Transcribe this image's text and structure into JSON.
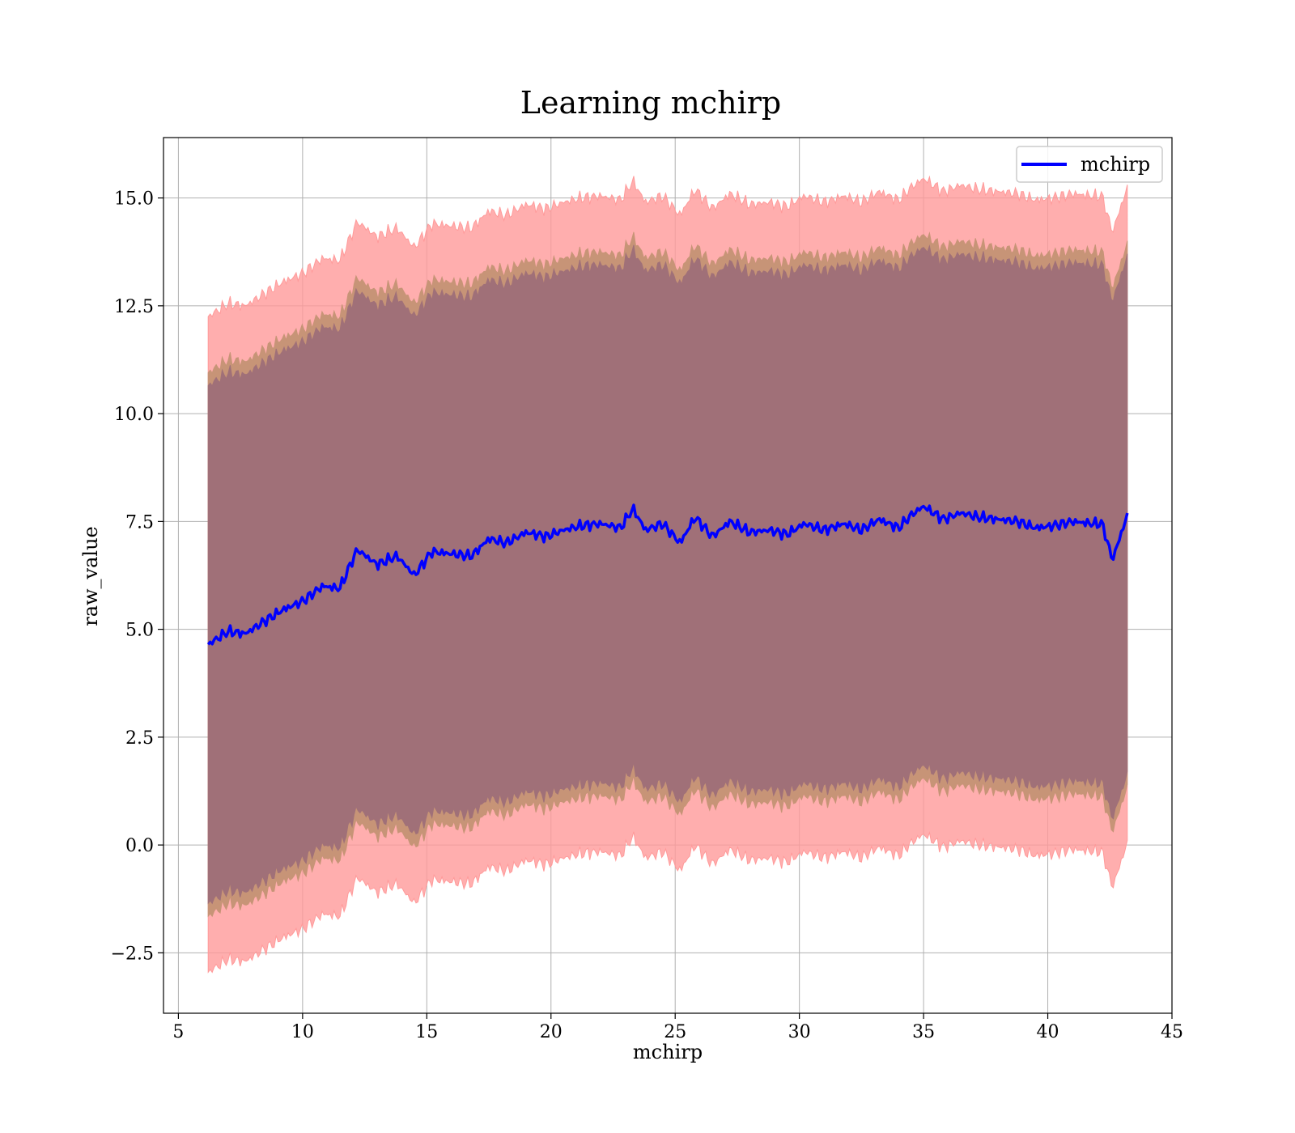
{
  "chart_data": {
    "type": "line",
    "title": "Learning mchirp",
    "xlabel": "mchirp",
    "ylabel": "raw_value",
    "xlim": [
      4.4,
      45
    ],
    "ylim": [
      -3.9,
      16.4
    ],
    "xticks": [
      5,
      10,
      15,
      20,
      25,
      30,
      35,
      40,
      45
    ],
    "xtick_labels": [
      "5",
      "10",
      "15",
      "20",
      "25",
      "30",
      "35",
      "40",
      "45"
    ],
    "yticks": [
      -2.5,
      0.0,
      2.5,
      5.0,
      7.5,
      10.0,
      12.5,
      15.0
    ],
    "ytick_labels": [
      "−2.5",
      "0.0",
      "2.5",
      "5.0",
      "7.5",
      "10.0",
      "12.5",
      "15.0"
    ],
    "grid": true,
    "legend_position": "top-right",
    "colors": {
      "line": "#0000ff",
      "band_outer": "#ff9a9a",
      "band_middle": "#c79477",
      "band_inner": "#a07078"
    },
    "series": [
      {
        "name": "mchirp",
        "x": [
          6.2,
          7.0,
          7.7,
          8.5,
          9.2,
          10.0,
          10.8,
          11.5,
          12.2,
          13.0,
          13.8,
          14.5,
          15.2,
          16.0,
          16.8,
          17.5,
          18.2,
          19.0,
          19.8,
          20.5,
          21.2,
          22.0,
          22.8,
          23.3,
          23.8,
          24.5,
          25.2,
          25.8,
          26.5,
          27.2,
          28.0,
          28.8,
          29.5,
          30.2,
          31.0,
          31.8,
          32.5,
          33.2,
          34.0,
          34.5,
          35.0,
          35.8,
          36.5,
          37.2,
          38.0,
          38.8,
          39.5,
          40.2,
          41.0,
          41.8,
          42.2,
          42.6,
          43.2
        ],
        "y": [
          4.65,
          4.95,
          4.9,
          5.2,
          5.45,
          5.65,
          6.0,
          5.95,
          6.85,
          6.5,
          6.7,
          6.25,
          6.8,
          6.75,
          6.7,
          7.1,
          7.0,
          7.25,
          7.15,
          7.3,
          7.4,
          7.45,
          7.35,
          7.8,
          7.3,
          7.45,
          7.0,
          7.6,
          7.15,
          7.5,
          7.25,
          7.3,
          7.2,
          7.45,
          7.3,
          7.45,
          7.3,
          7.55,
          7.35,
          7.65,
          7.85,
          7.55,
          7.7,
          7.6,
          7.55,
          7.5,
          7.35,
          7.4,
          7.5,
          7.45,
          7.45,
          6.6,
          7.65
        ]
      }
    ]
  },
  "legend": {
    "label": "mchirp"
  }
}
